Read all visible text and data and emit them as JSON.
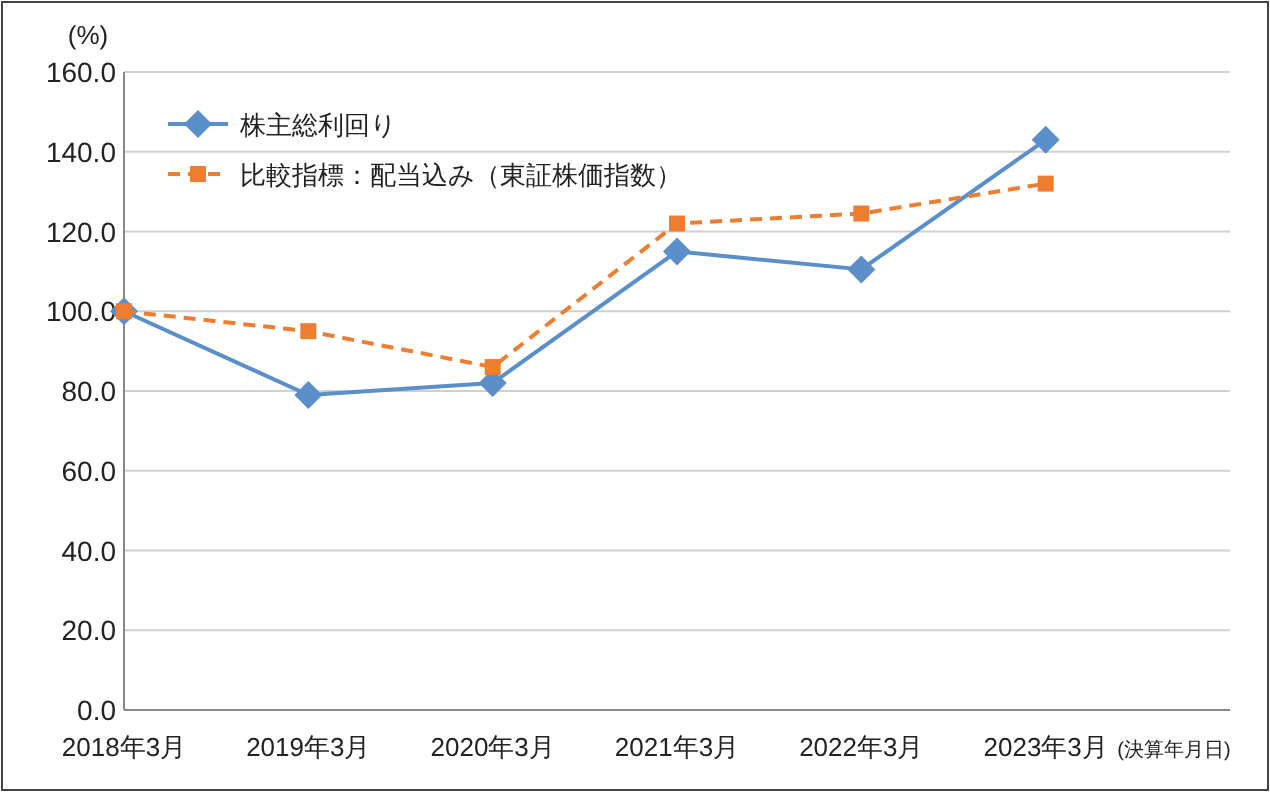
{
  "chart_data": {
    "type": "line",
    "ylabel": "(%)",
    "categories": [
      "2018年3月",
      "2019年3月",
      "2020年3月",
      "2021年3月",
      "2022年3月",
      "2023年3月"
    ],
    "series": [
      {
        "name": "株主総利回り",
        "color": "#5b8fc9",
        "values": [
          100,
          79,
          82,
          115,
          110.5,
          143
        ],
        "marker": "diamond",
        "line_style": "solid"
      },
      {
        "name": "比較指標：配当込み（東証株価指数）",
        "color": "#ed7d31",
        "values": [
          100,
          95,
          86,
          122,
          124.5,
          132
        ],
        "marker": "square",
        "line_style": "dashed"
      }
    ],
    "ylim": [
      0,
      160
    ],
    "yticks": [
      {
        "value": 0,
        "label": "0.0"
      },
      {
        "value": 20,
        "label": "20.0"
      },
      {
        "value": 40,
        "label": "40.0"
      },
      {
        "value": 60,
        "label": "60.0"
      },
      {
        "value": 80,
        "label": "80.0"
      },
      {
        "value": 100,
        "label": "100.0"
      },
      {
        "value": 120,
        "label": "120.0"
      },
      {
        "value": 140,
        "label": "140.0"
      },
      {
        "value": 160,
        "label": "160.0"
      }
    ],
    "grid": "y",
    "legend": "top left",
    "annotations": [
      "(決算年月日)"
    ]
  }
}
